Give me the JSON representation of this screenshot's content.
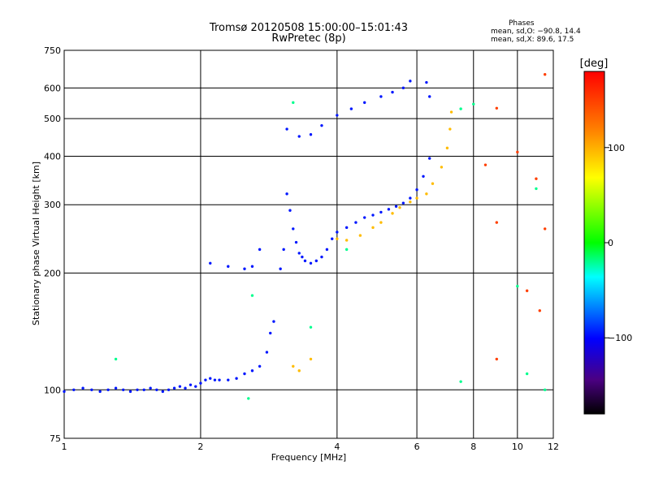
{
  "chart_data": {
    "type": "scatter",
    "title": "Tromsø 20120508 15:00:00–15:01:43",
    "subtitle": "RwPretec (8p)",
    "xlabel": "Frequency [MHz]",
    "ylabel": "Stationary phase Virtual Height [km]",
    "xscale": "log",
    "yscale": "log",
    "xlim": [
      1,
      12
    ],
    "ylim": [
      75,
      750
    ],
    "x_ticks": [
      1,
      2,
      4,
      6,
      8,
      10,
      12
    ],
    "x_tick_labels": [
      "1",
      "2",
      "4",
      "6",
      "8",
      "10",
      "12"
    ],
    "y_ticks": [
      75,
      100,
      200,
      300,
      400,
      500,
      600,
      750
    ],
    "y_tick_labels": [
      "75",
      "100",
      "200",
      "300",
      "400",
      "500",
      "600",
      "750"
    ],
    "grid": true,
    "phase_info": {
      "title": "Phases",
      "line1": "mean, sd,O: −90.8, 14.4",
      "line2": "mean, sd,X:  89.6, 17.5"
    },
    "colorbar": {
      "label": "[deg]",
      "ticks": [
        100,
        0,
        -100
      ],
      "tick_labels": [
        "100",
        "0",
        "−100"
      ],
      "range": [
        -180,
        180
      ]
    },
    "series": [
      {
        "color_phase_deg": -95,
        "points": [
          [
            1.0,
            99
          ],
          [
            1.05,
            100
          ],
          [
            1.1,
            101
          ],
          [
            1.15,
            100
          ],
          [
            1.2,
            99
          ],
          [
            1.25,
            100
          ],
          [
            1.3,
            101
          ],
          [
            1.35,
            100
          ],
          [
            1.4,
            99
          ],
          [
            1.45,
            100
          ],
          [
            1.5,
            100
          ],
          [
            1.55,
            101
          ],
          [
            1.6,
            100
          ],
          [
            1.65,
            99
          ],
          [
            1.7,
            100
          ],
          [
            1.75,
            101
          ],
          [
            1.8,
            102
          ],
          [
            1.85,
            101
          ],
          [
            1.9,
            103
          ],
          [
            1.95,
            102
          ],
          [
            2.0,
            104
          ],
          [
            2.05,
            106
          ],
          [
            2.1,
            107
          ],
          [
            2.15,
            106
          ],
          [
            2.2,
            106
          ],
          [
            2.3,
            106
          ],
          [
            2.4,
            107
          ],
          [
            2.5,
            110
          ],
          [
            2.6,
            112
          ],
          [
            2.7,
            115
          ],
          [
            2.8,
            125
          ],
          [
            2.85,
            140
          ],
          [
            2.9,
            150
          ],
          [
            3.0,
            205
          ],
          [
            3.05,
            230
          ],
          [
            3.1,
            320
          ],
          [
            3.15,
            290
          ],
          [
            3.2,
            260
          ],
          [
            3.25,
            240
          ],
          [
            3.3,
            225
          ],
          [
            3.35,
            220
          ],
          [
            3.4,
            215
          ],
          [
            3.5,
            212
          ],
          [
            3.6,
            215
          ],
          [
            3.7,
            220
          ],
          [
            3.8,
            230
          ],
          [
            3.9,
            245
          ],
          [
            4.0,
            255
          ],
          [
            4.2,
            262
          ],
          [
            4.4,
            270
          ],
          [
            4.6,
            278
          ],
          [
            4.8,
            282
          ],
          [
            5.0,
            287
          ],
          [
            5.2,
            292
          ],
          [
            5.4,
            297
          ],
          [
            5.6,
            303
          ],
          [
            5.8,
            312
          ],
          [
            6.0,
            328
          ],
          [
            6.2,
            355
          ],
          [
            6.4,
            395
          ],
          [
            2.1,
            212
          ],
          [
            2.3,
            208
          ],
          [
            2.5,
            205
          ],
          [
            2.6,
            208
          ],
          [
            2.7,
            230
          ],
          [
            3.1,
            470
          ],
          [
            3.3,
            450
          ],
          [
            3.5,
            455
          ],
          [
            3.7,
            480
          ],
          [
            4.0,
            510
          ],
          [
            4.3,
            530
          ],
          [
            4.6,
            550
          ],
          [
            5.0,
            570
          ],
          [
            5.3,
            585
          ],
          [
            5.6,
            600
          ],
          [
            5.8,
            625
          ],
          [
            6.3,
            620
          ],
          [
            6.4,
            570
          ]
        ]
      },
      {
        "color_phase_deg": 95,
        "points": [
          [
            4.0,
            245
          ],
          [
            4.2,
            243
          ],
          [
            4.5,
            250
          ],
          [
            4.8,
            262
          ],
          [
            5.0,
            270
          ],
          [
            5.3,
            285
          ],
          [
            5.5,
            295
          ],
          [
            5.8,
            305
          ],
          [
            6.0,
            312
          ],
          [
            6.3,
            320
          ],
          [
            6.5,
            340
          ],
          [
            6.8,
            375
          ],
          [
            7.0,
            420
          ],
          [
            7.1,
            470
          ],
          [
            7.15,
            520
          ],
          [
            3.2,
            115
          ],
          [
            3.3,
            112
          ],
          [
            3.5,
            120
          ]
        ]
      },
      {
        "color_phase_deg": 150,
        "points": [
          [
            8.5,
            380
          ],
          [
            9.0,
            532
          ],
          [
            9.0,
            270
          ],
          [
            9.0,
            120
          ],
          [
            10.0,
            410
          ],
          [
            10.5,
            180
          ],
          [
            11.0,
            350
          ],
          [
            11.2,
            160
          ],
          [
            11.5,
            260
          ],
          [
            11.5,
            650
          ]
        ]
      },
      {
        "color_phase_deg": -20,
        "points": [
          [
            1.3,
            120
          ],
          [
            2.55,
            95
          ],
          [
            2.6,
            175
          ],
          [
            3.2,
            550
          ],
          [
            3.5,
            145
          ],
          [
            4.2,
            230
          ],
          [
            7.5,
            105
          ],
          [
            7.5,
            530
          ],
          [
            8.0,
            545
          ],
          [
            10.0,
            185
          ],
          [
            10.5,
            110
          ],
          [
            11.0,
            330
          ],
          [
            11.5,
            100
          ]
        ]
      }
    ]
  }
}
